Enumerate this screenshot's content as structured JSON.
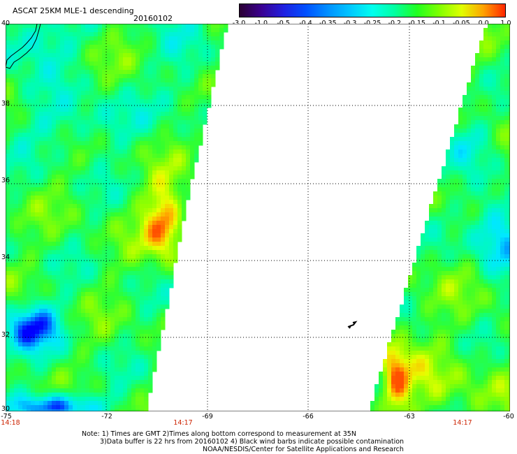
{
  "title": "ASCAT 25KM MLE-1 descending",
  "date": "20160102",
  "colorbar": {
    "labels": [
      "-3.0",
      "-1.0",
      "-0.5",
      "-0.4",
      "-0.35",
      "-0.3",
      "-0.25",
      "-0.2",
      "-0.15",
      "-0.1",
      "-0.05",
      "0.0",
      "1.0"
    ],
    "colors": [
      "#2a0030",
      "#3a0090",
      "#2020e0",
      "#0050ff",
      "#0090ff",
      "#00c8ff",
      "#00ffee",
      "#00ffa0",
      "#20ff20",
      "#80ff00",
      "#e0ff00",
      "#ffa000",
      "#ff2000"
    ]
  },
  "axes": {
    "lon_labels": [
      "-75",
      "-72",
      "-69",
      "-66",
      "-63",
      "-60"
    ],
    "lat_labels": [
      "40",
      "38",
      "36",
      "34",
      "32",
      "30"
    ]
  },
  "times": {
    "left": "14:18",
    "middle": "14:17",
    "right": "14:17"
  },
  "notes": {
    "line1": "Note: 1) Times are GMT 2)Times along bottom correspond to measurement at 35N",
    "line2": "3)Data buffer is 22 hrs from 20160102 4) Black wind barbs indicate possible contamination",
    "line3": "NOAA/NESDIS/Center for Satellite Applications and Research"
  },
  "colors": {
    "time_text": "#cc2200",
    "grid": "#000000"
  }
}
